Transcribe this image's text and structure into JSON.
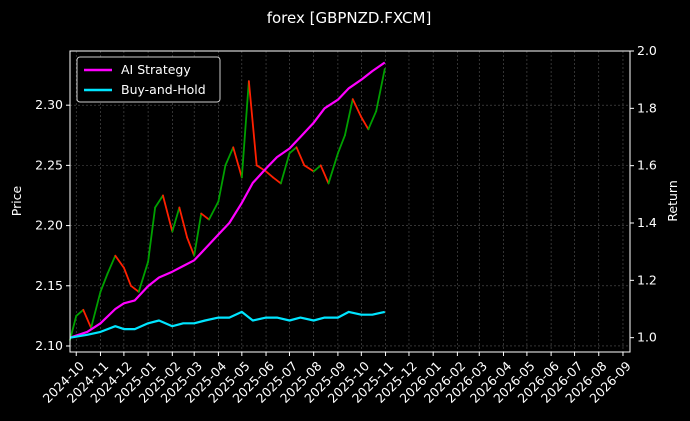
{
  "chart_data": {
    "type": "line",
    "title": "forex [GBPNZD.FXCM]",
    "xlabel": "",
    "ylabel": "Price",
    "ylabel_right": "Return",
    "background": "#000000",
    "grid": true,
    "legend_position": "top-left",
    "x_ticks": [
      "2024-10",
      "2024-11",
      "2024-12",
      "2025-01",
      "2025-02",
      "2025-03",
      "2025-04",
      "2025-05",
      "2025-06",
      "2025-07",
      "2025-08",
      "2025-09",
      "2025-10",
      "2025-11",
      "2025-12",
      "2026-01",
      "2026-02",
      "2026-03",
      "2026-04",
      "2026-05",
      "2026-06",
      "2026-07",
      "2026-08",
      "2026-09"
    ],
    "x_range": [
      "2024-09-23",
      "2026-09-10"
    ],
    "y_left": {
      "ticks": [
        2.1,
        2.15,
        2.2,
        2.25,
        2.3
      ],
      "tick_labels": [
        "2.10",
        "2.15",
        "2.20",
        "2.25",
        "2.30"
      ],
      "range": [
        2.095,
        2.345
      ]
    },
    "y_right": {
      "ticks": [
        1.0,
        1.2,
        1.4,
        1.6,
        1.8,
        2.0
      ],
      "tick_labels": [
        "1.0",
        "1.2",
        "1.4",
        "1.6",
        "1.8",
        "2.0"
      ],
      "range": [
        0.95,
        2.0
      ]
    },
    "price_series": {
      "name": "",
      "up_color": "#00a000",
      "down_color": "#ff2000",
      "dates": [
        "2024-09-23",
        "2024-10-01",
        "2024-10-10",
        "2024-10-20",
        "2024-11-01",
        "2024-11-10",
        "2024-11-20",
        "2024-12-01",
        "2024-12-10",
        "2024-12-20",
        "2025-01-01",
        "2025-01-10",
        "2025-01-20",
        "2025-02-01",
        "2025-02-10",
        "2025-02-20",
        "2025-03-01",
        "2025-03-10",
        "2025-03-20",
        "2025-04-01",
        "2025-04-10",
        "2025-04-20",
        "2025-05-01",
        "2025-05-10",
        "2025-05-20",
        "2025-06-01",
        "2025-06-10",
        "2025-06-20",
        "2025-07-01",
        "2025-07-10",
        "2025-07-20",
        "2025-08-01",
        "2025-08-10",
        "2025-08-20",
        "2025-09-01",
        "2025-09-10",
        "2025-09-20",
        "2025-10-01",
        "2025-10-10",
        "2025-10-20",
        "2025-10-31"
      ],
      "values": [
        2.105,
        2.125,
        2.13,
        2.115,
        2.145,
        2.16,
        2.175,
        2.165,
        2.15,
        2.145,
        2.17,
        2.215,
        2.225,
        2.195,
        2.215,
        2.19,
        2.175,
        2.21,
        2.205,
        2.22,
        2.25,
        2.265,
        2.24,
        2.32,
        2.25,
        2.245,
        2.24,
        2.235,
        2.26,
        2.265,
        2.25,
        2.245,
        2.25,
        2.235,
        2.26,
        2.275,
        2.305,
        2.29,
        2.28,
        2.295,
        2.33
      ]
    },
    "series": [
      {
        "name": "AI Strategy",
        "axis": "right",
        "color": "#ff00ff",
        "dates": [
          "2024-09-23",
          "2024-10-15",
          "2024-11-01",
          "2024-11-20",
          "2024-12-01",
          "2024-12-15",
          "2025-01-01",
          "2025-01-15",
          "2025-02-01",
          "2025-02-15",
          "2025-03-01",
          "2025-03-15",
          "2025-04-01",
          "2025-04-15",
          "2025-05-01",
          "2025-05-15",
          "2025-06-01",
          "2025-06-15",
          "2025-07-01",
          "2025-07-15",
          "2025-08-01",
          "2025-08-15",
          "2025-09-01",
          "2025-09-15",
          "2025-10-01",
          "2025-10-15",
          "2025-10-31"
        ],
        "values": [
          1.0,
          1.02,
          1.05,
          1.1,
          1.12,
          1.13,
          1.18,
          1.21,
          1.23,
          1.25,
          1.27,
          1.31,
          1.36,
          1.4,
          1.47,
          1.54,
          1.59,
          1.63,
          1.66,
          1.7,
          1.75,
          1.8,
          1.83,
          1.87,
          1.9,
          1.93,
          1.96
        ]
      },
      {
        "name": "Buy-and-Hold",
        "axis": "right",
        "color": "#00e5ff",
        "dates": [
          "2024-09-23",
          "2024-10-15",
          "2024-11-01",
          "2024-11-20",
          "2024-12-01",
          "2024-12-15",
          "2025-01-01",
          "2025-01-15",
          "2025-02-01",
          "2025-02-15",
          "2025-03-01",
          "2025-03-15",
          "2025-04-01",
          "2025-04-15",
          "2025-05-01",
          "2025-05-15",
          "2025-06-01",
          "2025-06-15",
          "2025-07-01",
          "2025-07-15",
          "2025-08-01",
          "2025-08-15",
          "2025-09-01",
          "2025-09-15",
          "2025-10-01",
          "2025-10-15",
          "2025-10-31"
        ],
        "values": [
          1.0,
          1.01,
          1.02,
          1.04,
          1.03,
          1.03,
          1.05,
          1.06,
          1.04,
          1.05,
          1.05,
          1.06,
          1.07,
          1.07,
          1.09,
          1.06,
          1.07,
          1.07,
          1.06,
          1.07,
          1.06,
          1.07,
          1.07,
          1.09,
          1.08,
          1.08,
          1.09
        ]
      }
    ]
  }
}
